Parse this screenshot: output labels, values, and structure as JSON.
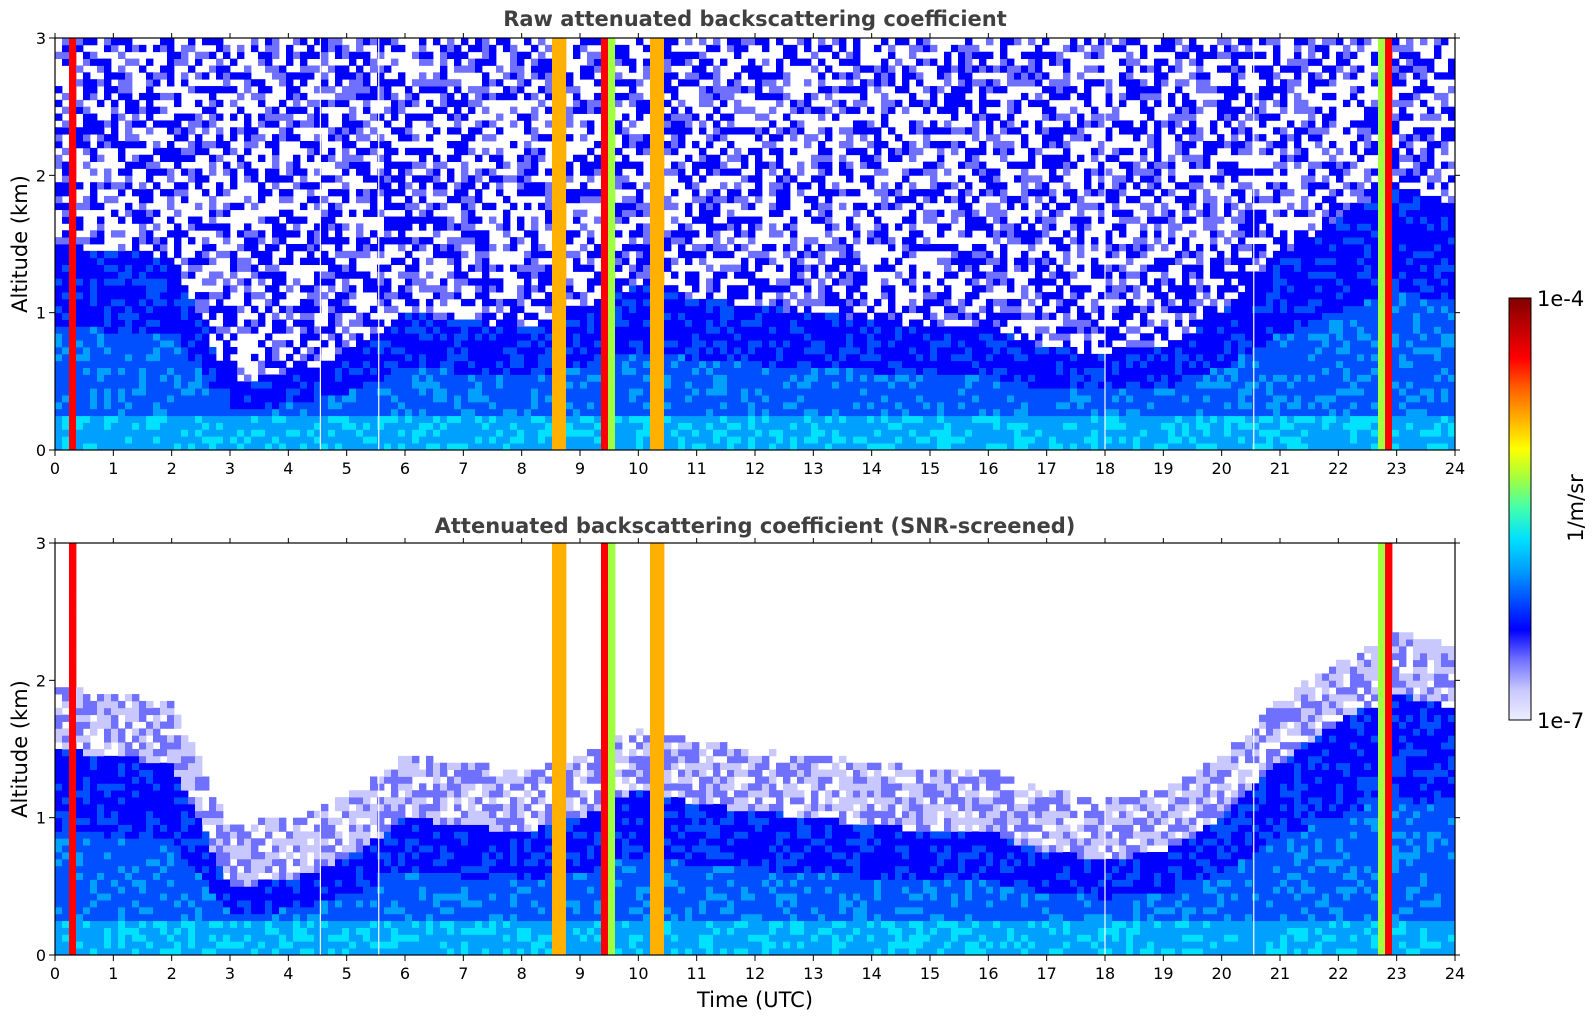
{
  "chart_data": [
    {
      "type": "heatmap",
      "title": "Raw attenuated backscattering coefficient",
      "ylabel": "Altitude (km)",
      "xlabel": "",
      "xlim": [
        0,
        24
      ],
      "ylim": [
        0,
        3
      ],
      "xticks": [
        "0",
        "1",
        "2",
        "3",
        "4",
        "5",
        "6",
        "7",
        "8",
        "9",
        "10",
        "11",
        "12",
        "13",
        "14",
        "15",
        "16",
        "17",
        "18",
        "19",
        "20",
        "21",
        "22",
        "23",
        "24"
      ],
      "yticks": [
        "0",
        "1",
        "2",
        "3"
      ],
      "screened": false
    },
    {
      "type": "heatmap",
      "title": "Attenuated backscattering coefficient (SNR-screened)",
      "ylabel": "Altitude (km)",
      "xlabel": "Time (UTC)",
      "xlim": [
        0,
        24
      ],
      "ylim": [
        0,
        3
      ],
      "xticks": [
        "0",
        "1",
        "2",
        "3",
        "4",
        "5",
        "6",
        "7",
        "8",
        "9",
        "10",
        "11",
        "12",
        "13",
        "14",
        "15",
        "16",
        "17",
        "18",
        "19",
        "20",
        "21",
        "22",
        "23",
        "24"
      ],
      "yticks": [
        "0",
        "1",
        "2",
        "3"
      ],
      "screened": true
    }
  ],
  "colorbar": {
    "label": "1/m/sr",
    "max_label": "1e-4",
    "min_label": "1e-7",
    "colormap": [
      "#eeeeff",
      "#c8c8ff",
      "#7070ff",
      "#0000ff",
      "#0050ff",
      "#00a0ff",
      "#00e0ff",
      "#40ffb0",
      "#a0ff40",
      "#ffff00",
      "#ffb000",
      "#ff6000",
      "#ff0000",
      "#c00000",
      "#800000"
    ]
  },
  "features": {
    "strong_columns_utc": [
      0.3,
      8.65,
      9.45,
      10.3,
      22.85
    ],
    "gap_lines_utc": [
      4.55,
      5.55,
      18.0,
      20.55
    ]
  }
}
